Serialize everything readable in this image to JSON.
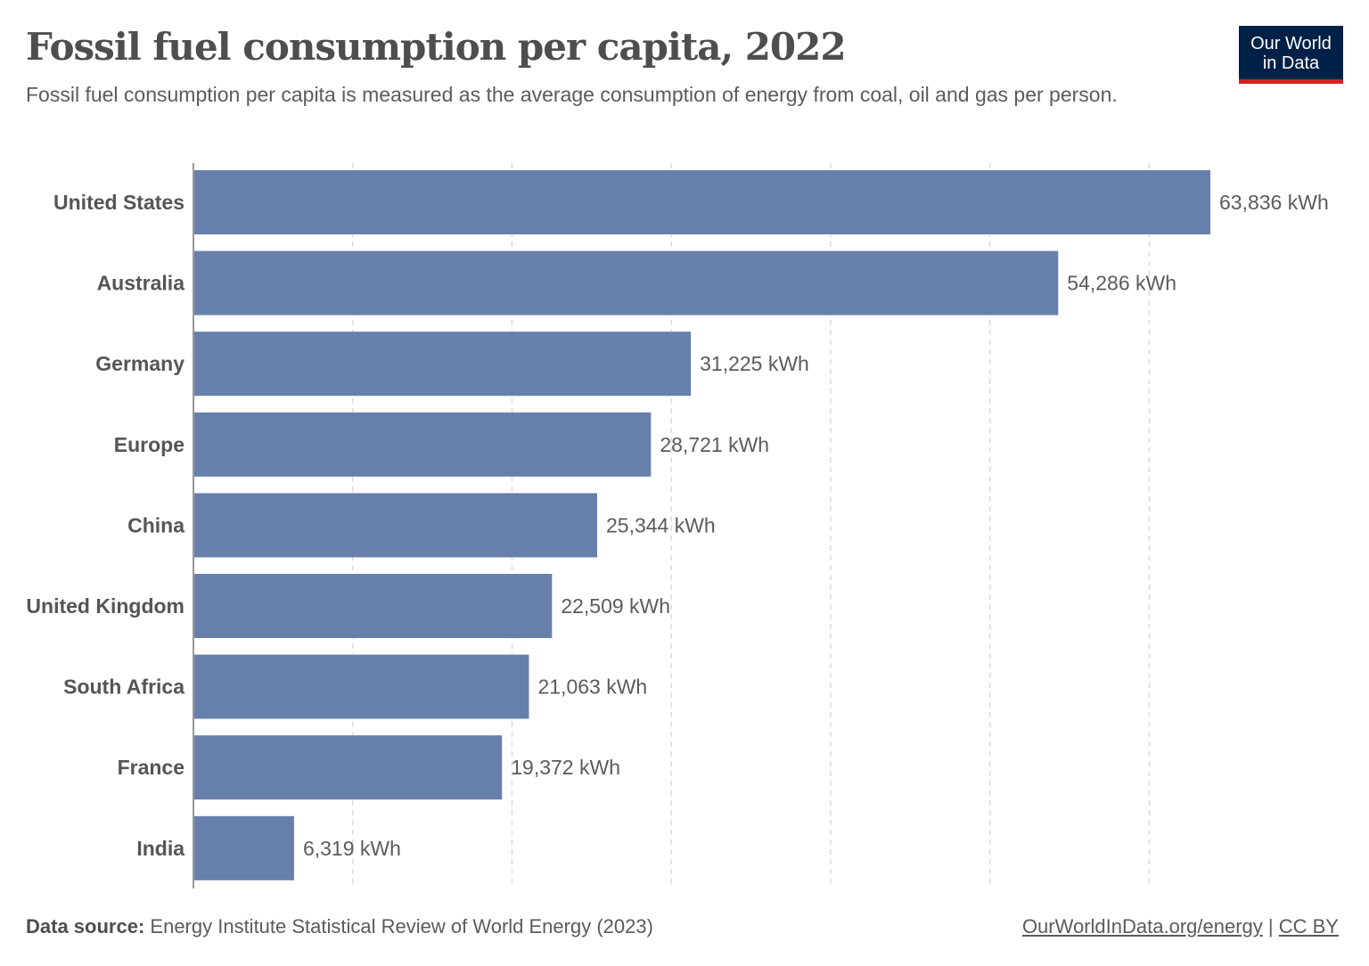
{
  "header": {
    "title": "Fossil fuel consumption per capita, 2022",
    "subtitle": "Fossil fuel consumption per capita is measured as the average consumption of energy from coal, oil and gas per person.",
    "logo_line1": "Our World",
    "logo_line2": "in Data"
  },
  "chart_data": {
    "type": "bar",
    "orientation": "horizontal",
    "title": "Fossil fuel consumption per capita, 2022",
    "categories": [
      "United States",
      "Australia",
      "Germany",
      "Europe",
      "China",
      "United Kingdom",
      "South Africa",
      "France",
      "India"
    ],
    "values": [
      63836,
      54286,
      31225,
      28721,
      25344,
      22509,
      21063,
      19372,
      6319
    ],
    "data_labels": [
      "63,836 kWh",
      "54,286 kWh",
      "31,225 kWh",
      "28,721 kWh",
      "25,344 kWh",
      "22,509 kWh",
      "21,063 kWh",
      "19,372 kWh",
      "6,319 kWh"
    ],
    "unit": "kWh",
    "xlim": [
      0,
      64000
    ],
    "gridlines": [
      10000,
      20000,
      30000,
      40000,
      50000,
      60000
    ],
    "grid": true,
    "bar_color": "#6780ab"
  },
  "footer": {
    "source_label": "Data source:",
    "source_text": "Energy Institute Statistical Review of World Energy (2023)",
    "link": "OurWorldInData.org/energy",
    "separator": "|",
    "license": "CC BY"
  }
}
